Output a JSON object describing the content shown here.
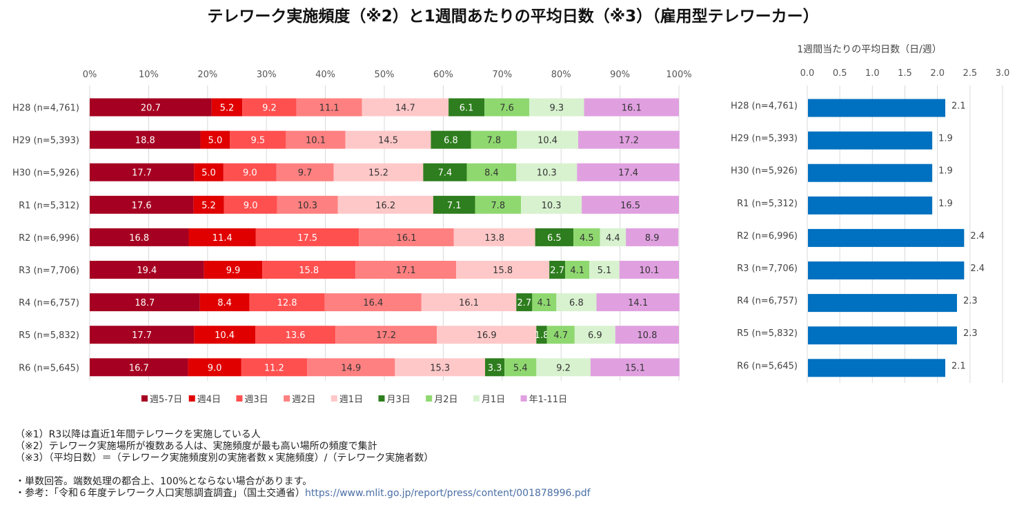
{
  "title": "テレワーク実施頻度（※2）と1週間あたりの平均日数（※3）（雇用型テレワーカー）",
  "chart_data": [
    {
      "type": "bar",
      "orientation": "horizontal",
      "stacked": true,
      "percent": true,
      "xlim": [
        0,
        100
      ],
      "x_ticks": [
        "0%",
        "10%",
        "20%",
        "30%",
        "40%",
        "50%",
        "60%",
        "70%",
        "80%",
        "90%",
        "100%"
      ],
      "categories": [
        "H28 (n=4,761)",
        "H29 (n=5,393)",
        "H30 (n=5,926)",
        "R1 (n=5,312)",
        "R2 (n=6,996)",
        "R3 (n=7,706)",
        "R4 (n=6,757)",
        "R5 (n=5,832)",
        "R6 (n=5,645)"
      ],
      "series": [
        {
          "name": "週5-7日",
          "color": "#a50021",
          "label_color": "#ffffff",
          "values": [
            20.7,
            18.8,
            17.7,
            17.6,
            16.8,
            19.4,
            18.7,
            17.7,
            16.7
          ]
        },
        {
          "name": "週4日",
          "color": "#e00000",
          "label_color": "#ffffff",
          "values": [
            5.2,
            5.0,
            5.0,
            5.2,
            11.4,
            9.9,
            8.4,
            10.4,
            9.0
          ]
        },
        {
          "name": "週3日",
          "color": "#ff5050",
          "label_color": "#ffffff",
          "values": [
            9.2,
            9.5,
            9.0,
            9.0,
            17.5,
            15.8,
            12.8,
            13.6,
            11.2
          ]
        },
        {
          "name": "週2日",
          "color": "#ff8080",
          "label_color": "#333333",
          "values": [
            11.1,
            10.1,
            9.7,
            10.3,
            16.1,
            17.1,
            16.4,
            17.2,
            14.9
          ]
        },
        {
          "name": "週1日",
          "color": "#ffc8c8",
          "label_color": "#333333",
          "values": [
            14.7,
            14.5,
            15.2,
            16.2,
            13.8,
            15.8,
            16.1,
            16.9,
            15.3
          ]
        },
        {
          "name": "月3日",
          "color": "#2e7d1e",
          "label_color": "#ffffff",
          "values": [
            6.1,
            6.8,
            7.4,
            7.1,
            6.5,
            2.7,
            2.7,
            1.8,
            3.3
          ]
        },
        {
          "name": "月2日",
          "color": "#8fd870",
          "label_color": "#333333",
          "values": [
            7.6,
            7.8,
            8.4,
            7.8,
            4.5,
            4.1,
            4.1,
            4.7,
            5.4
          ]
        },
        {
          "name": "月1日",
          "color": "#d8f2cf",
          "label_color": "#333333",
          "values": [
            9.3,
            10.4,
            10.3,
            10.3,
            4.4,
            5.1,
            6.8,
            6.9,
            9.2
          ]
        },
        {
          "name": "年1-11日",
          "color": "#e0a0e0",
          "label_color": "#333333",
          "values": [
            16.1,
            17.2,
            17.4,
            16.5,
            8.9,
            10.1,
            14.1,
            10.8,
            15.1
          ]
        }
      ],
      "legend": "bottom"
    },
    {
      "type": "bar",
      "orientation": "horizontal",
      "title": "1週間当たりの平均日数（日/週）",
      "xlim": [
        0,
        3.0
      ],
      "x_ticks": [
        "0.0",
        "0.5",
        "1.0",
        "1.5",
        "2.0",
        "2.5",
        "3.0"
      ],
      "categories": [
        "H28 (n=4,761)",
        "H29 (n=5,393)",
        "H30 (n=5,926)",
        "R1 (n=5,312)",
        "R2 (n=6,996)",
        "R3 (n=7,706)",
        "R4 (n=6,757)",
        "R5 (n=5,832)",
        "R6 (n=5,645)"
      ],
      "values": [
        2.12,
        1.92,
        1.92,
        1.92,
        2.41,
        2.41,
        2.3,
        2.3,
        2.12
      ],
      "value_labels": [
        "2.1",
        "1.9",
        "1.9",
        "1.9",
        "2.4",
        "2.4",
        "2.3",
        "2.3",
        "2.1"
      ],
      "color": "#0070c0"
    }
  ],
  "notes": {
    "note1": "（※1）R3以降は直近1年間テレワークを実施している人",
    "note2": "（※2）テレワーク実施場所が複数ある人は、実施頻度が最も高い場所の頻度で集計",
    "note3": "（※3）（平均日数）＝（テレワーク実施頻度別の実施者数ｘ実施頻度）/（テレワーク実施者数）",
    "bullet1": "・単数回答。端数処理の都合上、100%とならない場合があります。",
    "bullet2_prefix": "・参考：「令和６年度テレワーク人口実態調査調査」（国土交通省）",
    "bullet2_url": "https://www.mlit.go.jp/report/press/content/001878996.pdf"
  }
}
